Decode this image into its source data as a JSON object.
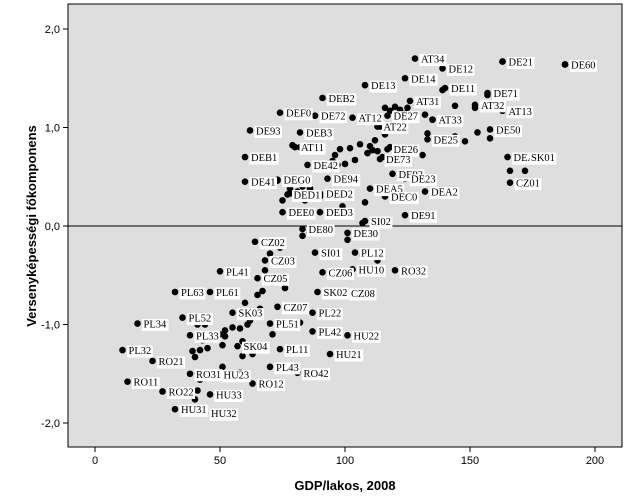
{
  "chart_data": {
    "type": "scatter",
    "xlabel": "GDP/lakos, 2008",
    "ylabel": "Versenyképességi főkomponens",
    "xlim": [
      -5,
      210
    ],
    "ylim": [
      -2.3,
      2.2
    ],
    "x_ticks": [
      0,
      50,
      100,
      150,
      200
    ],
    "x_tick_labels": [
      "0",
      "50",
      "100",
      "150",
      "200"
    ],
    "y_ticks": [
      2.0,
      1.0,
      0.0,
      -1.0,
      -2.0
    ],
    "y_tick_labels": [
      "2,0",
      "1,0",
      "0,0",
      "-1,0",
      "-2,0"
    ],
    "reference_line_y": 0,
    "grid": false,
    "colors": {
      "plot_bg": "#dedede",
      "point": "#000000",
      "label_bg": "#ffffff"
    },
    "labeled_points": [
      {
        "label": "AT34",
        "x": 128,
        "y": 1.7
      },
      {
        "label": "DE12",
        "x": 139,
        "y": 1.6
      },
      {
        "label": "DE21",
        "x": 163,
        "y": 1.67
      },
      {
        "label": "DE14",
        "x": 124,
        "y": 1.5
      },
      {
        "label": "DE11",
        "x": 140,
        "y": 1.4
      },
      {
        "label": "DE60",
        "x": 188,
        "y": 1.64
      },
      {
        "label": "DE13",
        "x": 108,
        "y": 1.43
      },
      {
        "label": "AT31",
        "x": 126,
        "y": 1.27
      },
      {
        "label": "DE71",
        "x": 157,
        "y": 1.35
      },
      {
        "label": "DEB2",
        "x": 91,
        "y": 1.3
      },
      {
        "label": "AT12",
        "x": 103,
        "y": 1.1
      },
      {
        "label": "DE27",
        "x": 117,
        "y": 1.12
      },
      {
        "label": "AT32",
        "x": 152,
        "y": 1.23
      },
      {
        "label": "AT13",
        "x": 163,
        "y": 1.17
      },
      {
        "label": "DEF0",
        "x": 74,
        "y": 1.15
      },
      {
        "label": "DE72",
        "x": 88,
        "y": 1.12
      },
      {
        "label": "AT33",
        "x": 135,
        "y": 1.08
      },
      {
        "label": "DE93",
        "x": 62,
        "y": 0.97
      },
      {
        "label": "DEB3",
        "x": 82,
        "y": 0.95
      },
      {
        "label": "AT22",
        "x": 113,
        "y": 1.01
      },
      {
        "label": "DE50",
        "x": 158,
        "y": 0.98
      },
      {
        "label": "DE25",
        "x": 133,
        "y": 0.88
      },
      {
        "label": "AT11",
        "x": 80,
        "y": 0.8
      },
      {
        "label": "DE26",
        "x": 117,
        "y": 0.78
      },
      {
        "label": "DEB1",
        "x": 60,
        "y": 0.7
      },
      {
        "label": "DE73",
        "x": 114,
        "y": 0.68
      },
      {
        "label": "DEA1",
        "x": 165,
        "y": 0.7
      },
      {
        "label": "SK01",
        "x": 172,
        "y": 0.7
      },
      {
        "label": "DE42",
        "x": 85,
        "y": 0.62
      },
      {
        "label": "DEG0",
        "x": 73,
        "y": 0.47
      },
      {
        "label": "DE94",
        "x": 93,
        "y": 0.48
      },
      {
        "label": "DE92",
        "x": 119,
        "y": 0.53
      },
      {
        "label": "DE41",
        "x": 60,
        "y": 0.45
      },
      {
        "label": "CZ01",
        "x": 166,
        "y": 0.44
      },
      {
        "label": "DED1",
        "x": 77,
        "y": 0.32
      },
      {
        "label": "DED2",
        "x": 90,
        "y": 0.33
      },
      {
        "label": "DEA5",
        "x": 110,
        "y": 0.38
      },
      {
        "label": "DEC0",
        "x": 116,
        "y": 0.3
      },
      {
        "label": "DE23",
        "x": 124,
        "y": 0.48
      },
      {
        "label": "DEA2",
        "x": 132,
        "y": 0.35
      },
      {
        "label": "DEE0",
        "x": 75,
        "y": 0.14
      },
      {
        "label": "DED3",
        "x": 90,
        "y": 0.14
      },
      {
        "label": "DE91",
        "x": 124,
        "y": 0.11
      },
      {
        "label": "SI02",
        "x": 108,
        "y": 0.05
      },
      {
        "label": "DE80",
        "x": 83,
        "y": -0.03
      },
      {
        "label": "DE30",
        "x": 101,
        "y": -0.07
      },
      {
        "label": "CZ02",
        "x": 64,
        "y": -0.16
      },
      {
        "label": "SI01",
        "x": 88,
        "y": -0.27
      },
      {
        "label": "PL12",
        "x": 104,
        "y": -0.27
      },
      {
        "label": "CZ03",
        "x": 68,
        "y": -0.35
      },
      {
        "label": "HU10",
        "x": 103,
        "y": -0.44
      },
      {
        "label": "RO32",
        "x": 120,
        "y": -0.45
      },
      {
        "label": "PL41",
        "x": 50,
        "y": -0.46
      },
      {
        "label": "CZ06",
        "x": 91,
        "y": -0.47
      },
      {
        "label": "CZ05",
        "x": 65,
        "y": -0.53
      },
      {
        "label": "PL63",
        "x": 32,
        "y": -0.67
      },
      {
        "label": "PL61",
        "x": 46,
        "y": -0.67
      },
      {
        "label": "SK02",
        "x": 89,
        "y": -0.67
      },
      {
        "label": "CZ08",
        "x": 100,
        "y": -0.68
      },
      {
        "label": "CZ07",
        "x": 73,
        "y": -0.82
      },
      {
        "label": "PL52",
        "x": 35,
        "y": -0.93
      },
      {
        "label": "SK03",
        "x": 55,
        "y": -0.88
      },
      {
        "label": "PL22",
        "x": 87,
        "y": -0.88
      },
      {
        "label": "PL34",
        "x": 17,
        "y": -0.99
      },
      {
        "label": "PL51",
        "x": 70,
        "y": -0.99
      },
      {
        "label": "PL42",
        "x": 87,
        "y": -1.07
      },
      {
        "label": "PL33",
        "x": 38,
        "y": -1.11
      },
      {
        "label": "HU22",
        "x": 101,
        "y": -1.11
      },
      {
        "label": "SK04",
        "x": 57,
        "y": -1.22
      },
      {
        "label": "PL11",
        "x": 74,
        "y": -1.25
      },
      {
        "label": "PL32",
        "x": 11,
        "y": -1.26
      },
      {
        "label": "HU21",
        "x": 94,
        "y": -1.3
      },
      {
        "label": "RO21",
        "x": 23,
        "y": -1.37
      },
      {
        "label": "PL43",
        "x": 70,
        "y": -1.43
      },
      {
        "label": "RO31",
        "x": 38,
        "y": -1.5
      },
      {
        "label": "HU23",
        "x": 49,
        "y": -1.51
      },
      {
        "label": "RO42",
        "x": 81,
        "y": -1.49
      },
      {
        "label": "RO11",
        "x": 13,
        "y": -1.58
      },
      {
        "label": "RO12",
        "x": 63,
        "y": -1.6
      },
      {
        "label": "RO22",
        "x": 27,
        "y": -1.68
      },
      {
        "label": "HU33",
        "x": 46,
        "y": -1.71
      },
      {
        "label": "HU31",
        "x": 32,
        "y": -1.86
      },
      {
        "label": "HU32",
        "x": 44,
        "y": -1.9
      }
    ],
    "points": [
      [
        163,
        1.67
      ],
      [
        188,
        1.64
      ],
      [
        139,
        1.38
      ],
      [
        157,
        1.33
      ],
      [
        152,
        1.2
      ],
      [
        163,
        1.17
      ],
      [
        113,
        1.09
      ],
      [
        118,
        1.17
      ],
      [
        122,
        1.18
      ],
      [
        120,
        1.21
      ],
      [
        124,
        1.14
      ],
      [
        116,
        1.2
      ],
      [
        125,
        1.2
      ],
      [
        132,
        1.13
      ],
      [
        135,
        1.08
      ],
      [
        144,
        1.22
      ],
      [
        142,
        1.04
      ],
      [
        153,
        0.95
      ],
      [
        158,
        0.89
      ],
      [
        144,
        0.91
      ],
      [
        148,
        0.86
      ],
      [
        114,
        1.01
      ],
      [
        116,
        0.93
      ],
      [
        112,
        0.87
      ],
      [
        110,
        0.81
      ],
      [
        111,
        0.77
      ],
      [
        109,
        0.74
      ],
      [
        113,
        0.76
      ],
      [
        106,
        0.83
      ],
      [
        102,
        0.79
      ],
      [
        98,
        0.78
      ],
      [
        96,
        0.72
      ],
      [
        88,
        0.76
      ],
      [
        82,
        0.8
      ],
      [
        79,
        0.82
      ],
      [
        104,
        0.67
      ],
      [
        100,
        0.63
      ],
      [
        97,
        0.62
      ],
      [
        92,
        0.58
      ],
      [
        95,
        0.66
      ],
      [
        115,
        0.7
      ],
      [
        118,
        0.8
      ],
      [
        131,
        0.72
      ],
      [
        133,
        0.94
      ],
      [
        166,
        0.56
      ],
      [
        172,
        0.56
      ],
      [
        73,
        0.46
      ],
      [
        78,
        0.38
      ],
      [
        81,
        0.35
      ],
      [
        83,
        0.4
      ],
      [
        86,
        0.38
      ],
      [
        78,
        0.33
      ],
      [
        75,
        0.26
      ],
      [
        84,
        0.26
      ],
      [
        90,
        0.3
      ],
      [
        99,
        0.2
      ],
      [
        108,
        0.24
      ],
      [
        107,
        0.03
      ],
      [
        101,
        -0.14
      ],
      [
        86,
        -0.07
      ],
      [
        83,
        -0.1
      ],
      [
        75,
        -0.17
      ],
      [
        74,
        -0.22
      ],
      [
        107,
        -0.3
      ],
      [
        113,
        -0.35
      ],
      [
        70,
        -0.28
      ],
      [
        68,
        -0.45
      ],
      [
        72,
        -0.55
      ],
      [
        76,
        -0.63
      ],
      [
        67,
        -0.66
      ],
      [
        65,
        -0.7
      ],
      [
        60,
        -0.78
      ],
      [
        66,
        -0.84
      ],
      [
        63,
        -0.92
      ],
      [
        62,
        -0.96
      ],
      [
        58,
        -1.04
      ],
      [
        61,
        -1.0
      ],
      [
        55,
        -1.03
      ],
      [
        52,
        -1.06
      ],
      [
        50,
        -1.1
      ],
      [
        52,
        -1.12
      ],
      [
        48,
        -1.13
      ],
      [
        45,
        -1.12
      ],
      [
        43,
        -1.16
      ],
      [
        41,
        -1.0
      ],
      [
        44,
        -1.0
      ],
      [
        59,
        -1.17
      ],
      [
        51,
        -1.21
      ],
      [
        45,
        -1.24
      ],
      [
        42,
        -1.26
      ],
      [
        39,
        -1.27
      ],
      [
        40,
        -1.33
      ],
      [
        29,
        -1.38
      ],
      [
        41,
        -1.5
      ],
      [
        42,
        -1.56
      ],
      [
        43,
        -1.54
      ],
      [
        45,
        -1.52
      ],
      [
        41,
        -1.67
      ],
      [
        40,
        -1.76
      ],
      [
        51,
        -1.43
      ],
      [
        55,
        -1.5
      ],
      [
        58,
        -1.49
      ],
      [
        63,
        -1.3
      ],
      [
        59,
        -1.32
      ],
      [
        68,
        -1.24
      ],
      [
        71,
        -1.1
      ],
      [
        80,
        -1.02
      ],
      [
        82,
        -0.98
      ]
    ]
  }
}
